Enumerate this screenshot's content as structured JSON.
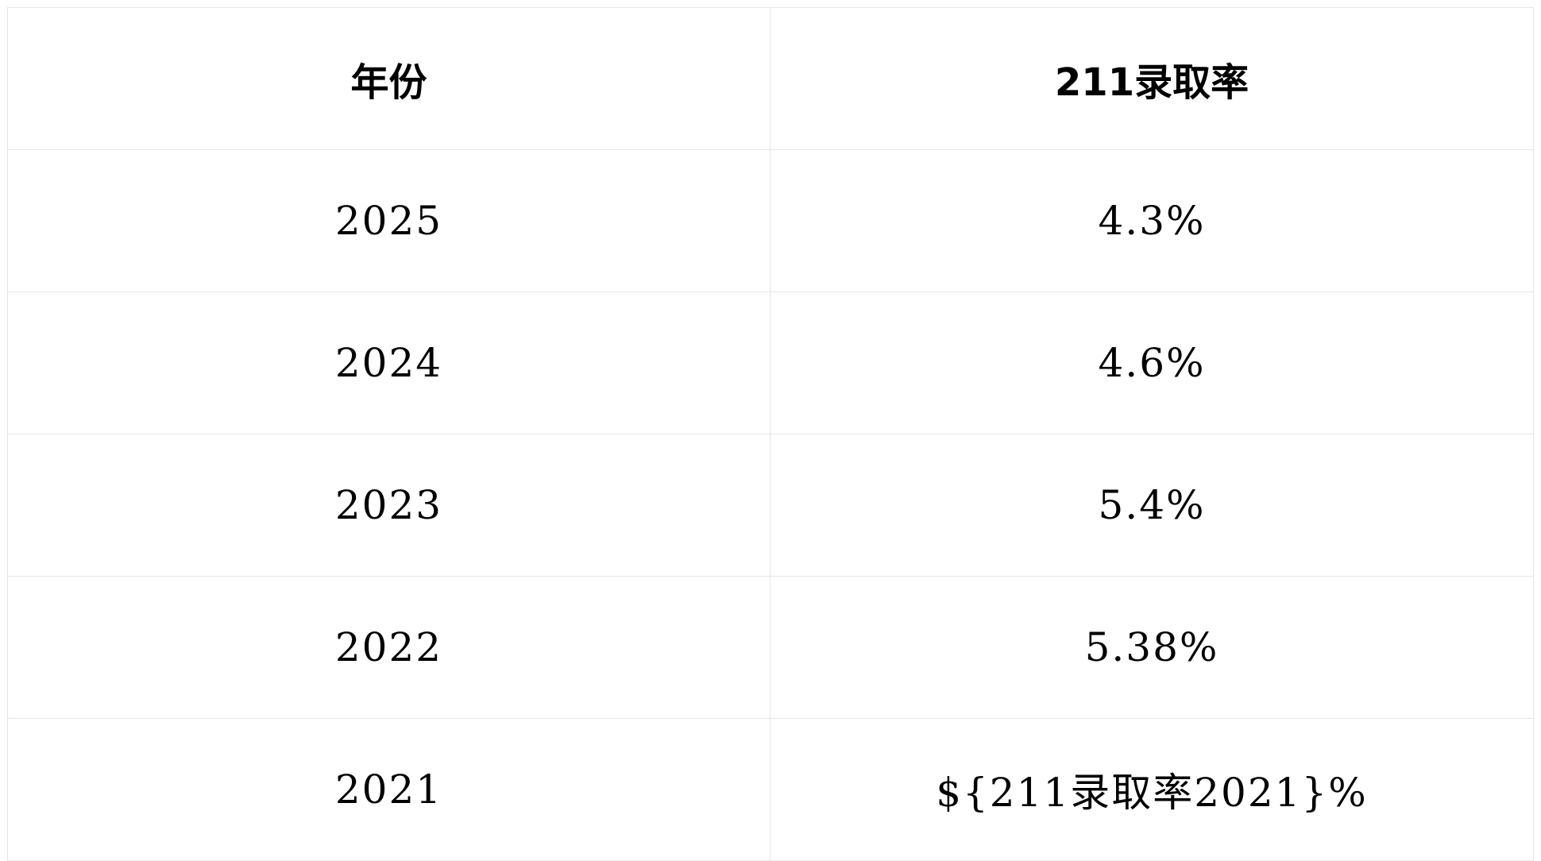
{
  "table": {
    "headers": [
      "年份",
      "211录取率"
    ],
    "rows": [
      [
        "2025",
        "4.3%"
      ],
      [
        "2024",
        "4.6%"
      ],
      [
        "2023",
        "5.4%"
      ],
      [
        "2022",
        "5.38%"
      ],
      [
        "2021",
        "${211录取率2021}%"
      ]
    ]
  }
}
